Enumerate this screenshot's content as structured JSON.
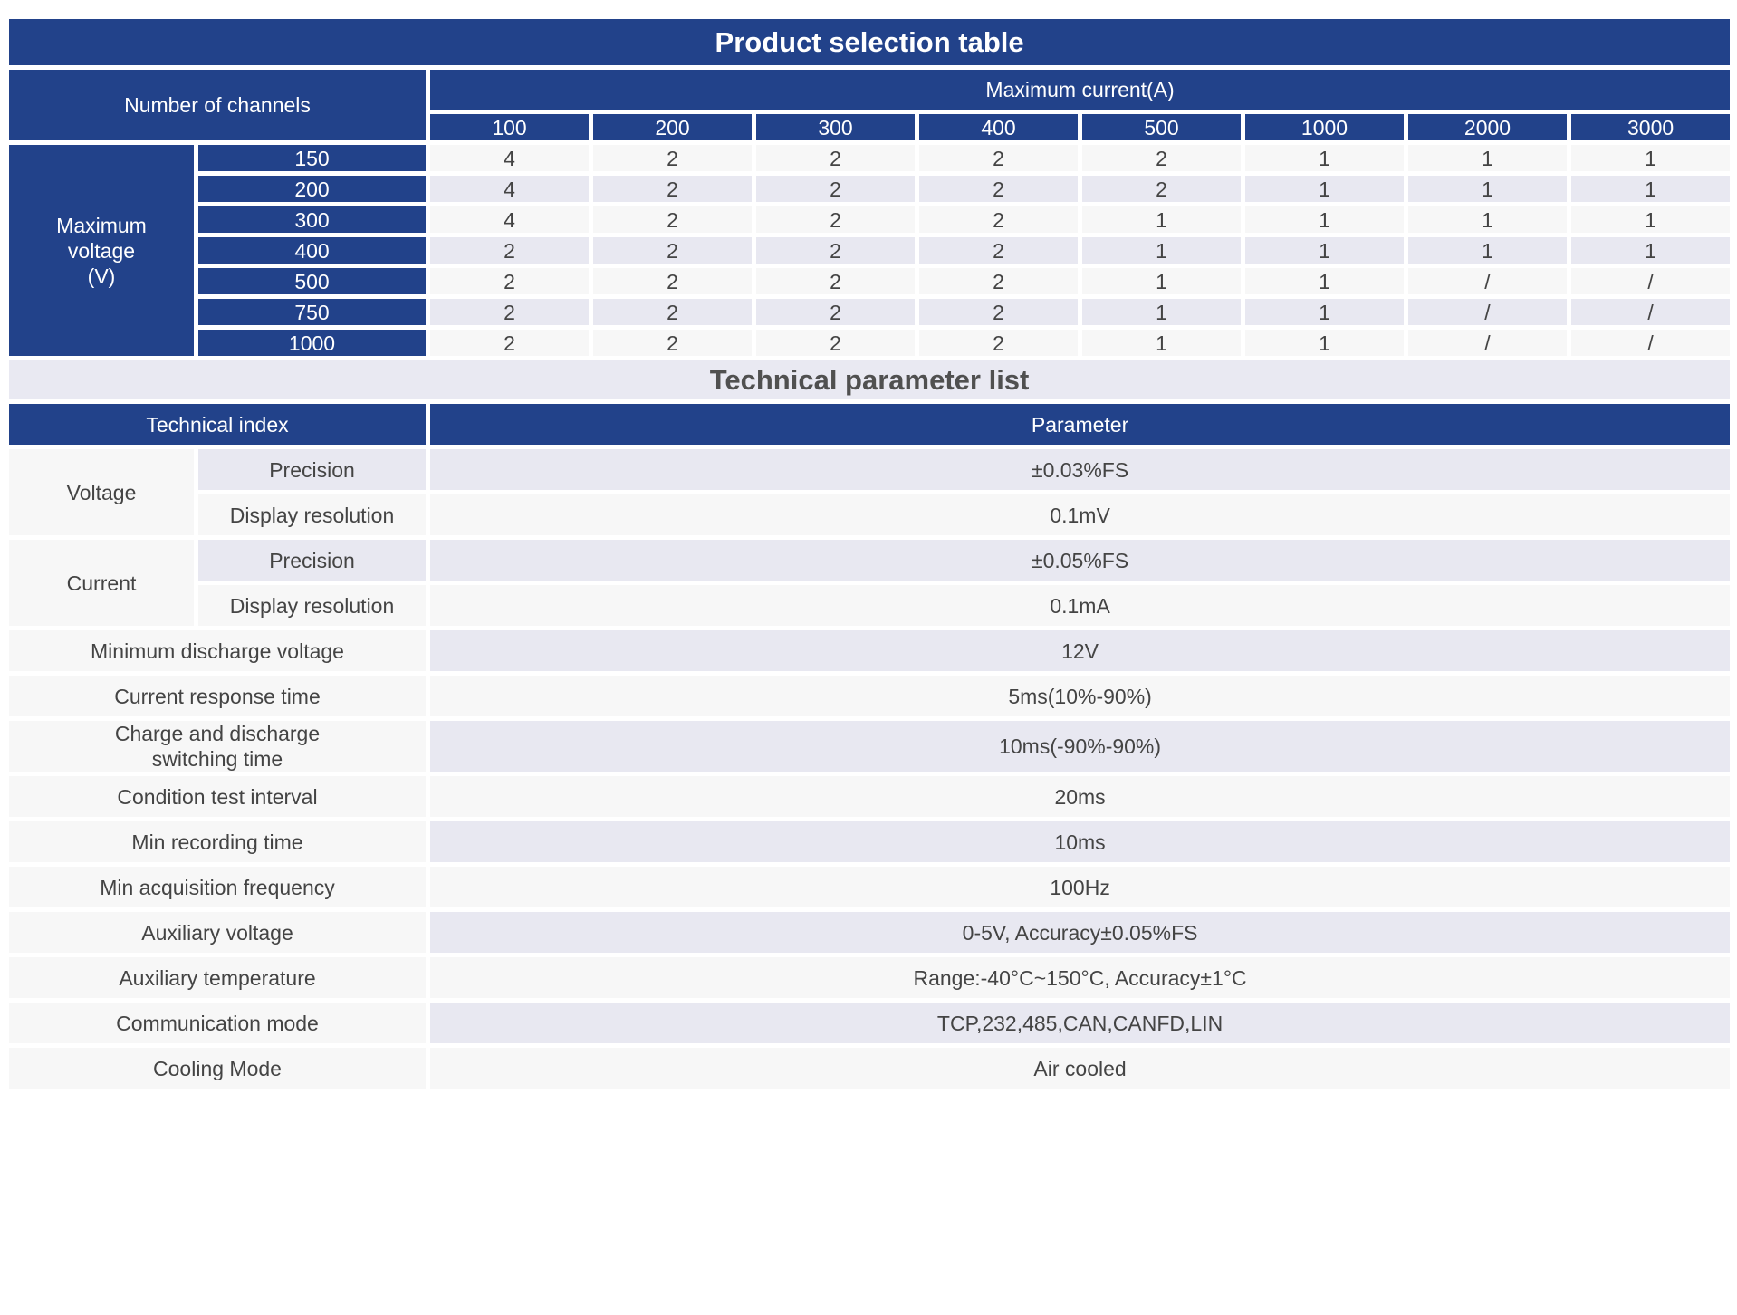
{
  "selection": {
    "title": "Product selection table",
    "channels_label": "Number of channels",
    "current_label": "Maximum current(A)",
    "voltage_label": "Maximum\nvoltage\n(V)",
    "currents": [
      "100",
      "200",
      "300",
      "400",
      "500",
      "1000",
      "2000",
      "3000"
    ],
    "rows": [
      {
        "voltage": "150",
        "values": [
          "4",
          "2",
          "2",
          "2",
          "2",
          "1",
          "1",
          "1"
        ]
      },
      {
        "voltage": "200",
        "values": [
          "4",
          "2",
          "2",
          "2",
          "2",
          "1",
          "1",
          "1"
        ]
      },
      {
        "voltage": "300",
        "values": [
          "4",
          "2",
          "2",
          "2",
          "1",
          "1",
          "1",
          "1"
        ]
      },
      {
        "voltage": "400",
        "values": [
          "2",
          "2",
          "2",
          "2",
          "1",
          "1",
          "1",
          "1"
        ]
      },
      {
        "voltage": "500",
        "values": [
          "2",
          "2",
          "2",
          "2",
          "1",
          "1",
          "/",
          "/"
        ]
      },
      {
        "voltage": "750",
        "values": [
          "2",
          "2",
          "2",
          "2",
          "1",
          "1",
          "/",
          "/"
        ]
      },
      {
        "voltage": "1000",
        "values": [
          "2",
          "2",
          "2",
          "2",
          "1",
          "1",
          "/",
          "/"
        ]
      }
    ]
  },
  "params": {
    "title": "Technical parameter list",
    "index_label": "Technical index",
    "param_label": "Parameter",
    "voltage": {
      "label": "Voltage",
      "precision_label": "Precision",
      "precision_value": "±0.03%FS",
      "resolution_label": "Display resolution",
      "resolution_value": "0.1mV"
    },
    "current": {
      "label": "Current",
      "precision_label": "Precision",
      "precision_value": "±0.05%FS",
      "resolution_label": "Display resolution",
      "resolution_value": "0.1mA"
    },
    "rows": [
      {
        "label": "Minimum discharge voltage",
        "value": "12V"
      },
      {
        "label": "Current response time",
        "value": "5ms(10%-90%)"
      },
      {
        "label": "Charge and discharge\n switching time",
        "value": "10ms(-90%-90%)"
      },
      {
        "label": "Condition test interval",
        "value": "20ms"
      },
      {
        "label": "Min recording time",
        "value": "10ms"
      },
      {
        "label": "Min acquisition frequency",
        "value": "100Hz"
      },
      {
        "label": "Auxiliary voltage",
        "value": "0-5V, Accuracy±0.05%FS"
      },
      {
        "label": "Auxiliary temperature",
        "value": "Range:-40°C~150°C, Accuracy±1°C"
      },
      {
        "label": "Communication mode",
        "value": "TCP,232,485,CAN,CANFD,LIN"
      },
      {
        "label": "Cooling Mode",
        "value": "Air cooled"
      }
    ]
  }
}
